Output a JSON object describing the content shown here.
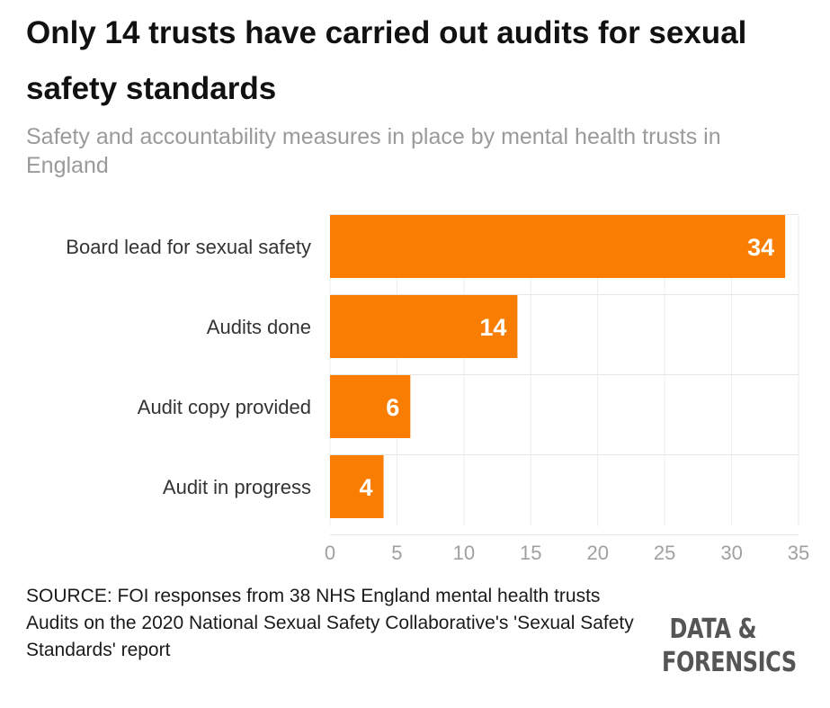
{
  "chart_data": {
    "type": "bar",
    "orientation": "horizontal",
    "title": "Only 14 trusts have carried out audits for sexual safety standards",
    "subtitle": "Safety and accountability measures in place by mental health trusts in England",
    "categories": [
      "Board lead for sexual safety",
      "Audits done",
      "Audit copy provided",
      "Audit in progress"
    ],
    "values": [
      34,
      14,
      6,
      4
    ],
    "xlim": [
      0,
      35
    ],
    "xticks": [
      0,
      5,
      10,
      15,
      20,
      25,
      30,
      35
    ],
    "grid": true,
    "bar_color": "#f97d00",
    "label_color": "#ffffff"
  },
  "footer": {
    "source_line1": "SOURCE: FOI responses from 38 NHS England mental health trusts",
    "source_line2": "Audits on the 2020 National Sexual Safety Collaborative's 'Sexual Safety Standards' report",
    "brand_line1": "DATA &",
    "brand_line2": "FORENSICS"
  }
}
